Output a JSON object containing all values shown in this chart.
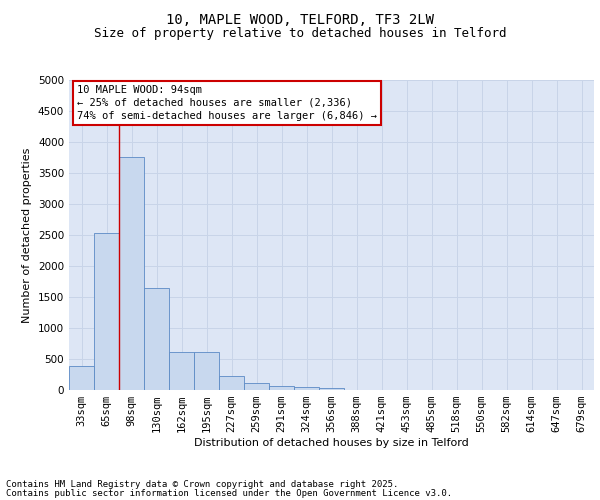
{
  "title1": "10, MAPLE WOOD, TELFORD, TF3 2LW",
  "title2": "Size of property relative to detached houses in Telford",
  "xlabel": "Distribution of detached houses by size in Telford",
  "ylabel": "Number of detached properties",
  "categories": [
    "33sqm",
    "65sqm",
    "98sqm",
    "130sqm",
    "162sqm",
    "195sqm",
    "227sqm",
    "259sqm",
    "291sqm",
    "324sqm",
    "356sqm",
    "388sqm",
    "421sqm",
    "453sqm",
    "485sqm",
    "518sqm",
    "550sqm",
    "582sqm",
    "614sqm",
    "647sqm",
    "679sqm"
  ],
  "values": [
    380,
    2540,
    3760,
    1650,
    620,
    620,
    220,
    110,
    70,
    55,
    30,
    0,
    0,
    0,
    0,
    0,
    0,
    0,
    0,
    0,
    0
  ],
  "bar_color": "#c8d8ee",
  "bar_edge_color": "#5b8ac5",
  "grid_color": "#c8d4e8",
  "background_color": "#dde6f5",
  "vline_color": "#cc0000",
  "vline_x": 1.5,
  "annotation_text": "10 MAPLE WOOD: 94sqm\n← 25% of detached houses are smaller (2,336)\n74% of semi-detached houses are larger (6,846) →",
  "annotation_box_color": "#cc0000",
  "ylim": [
    0,
    5000
  ],
  "yticks": [
    0,
    500,
    1000,
    1500,
    2000,
    2500,
    3000,
    3500,
    4000,
    4500,
    5000
  ],
  "footnote1": "Contains HM Land Registry data © Crown copyright and database right 2025.",
  "footnote2": "Contains public sector information licensed under the Open Government Licence v3.0.",
  "title1_fontsize": 10,
  "title2_fontsize": 9,
  "ylabel_fontsize": 8,
  "xlabel_fontsize": 8,
  "tick_fontsize": 7.5,
  "annotation_fontsize": 7.5,
  "footnote_fontsize": 6.5
}
